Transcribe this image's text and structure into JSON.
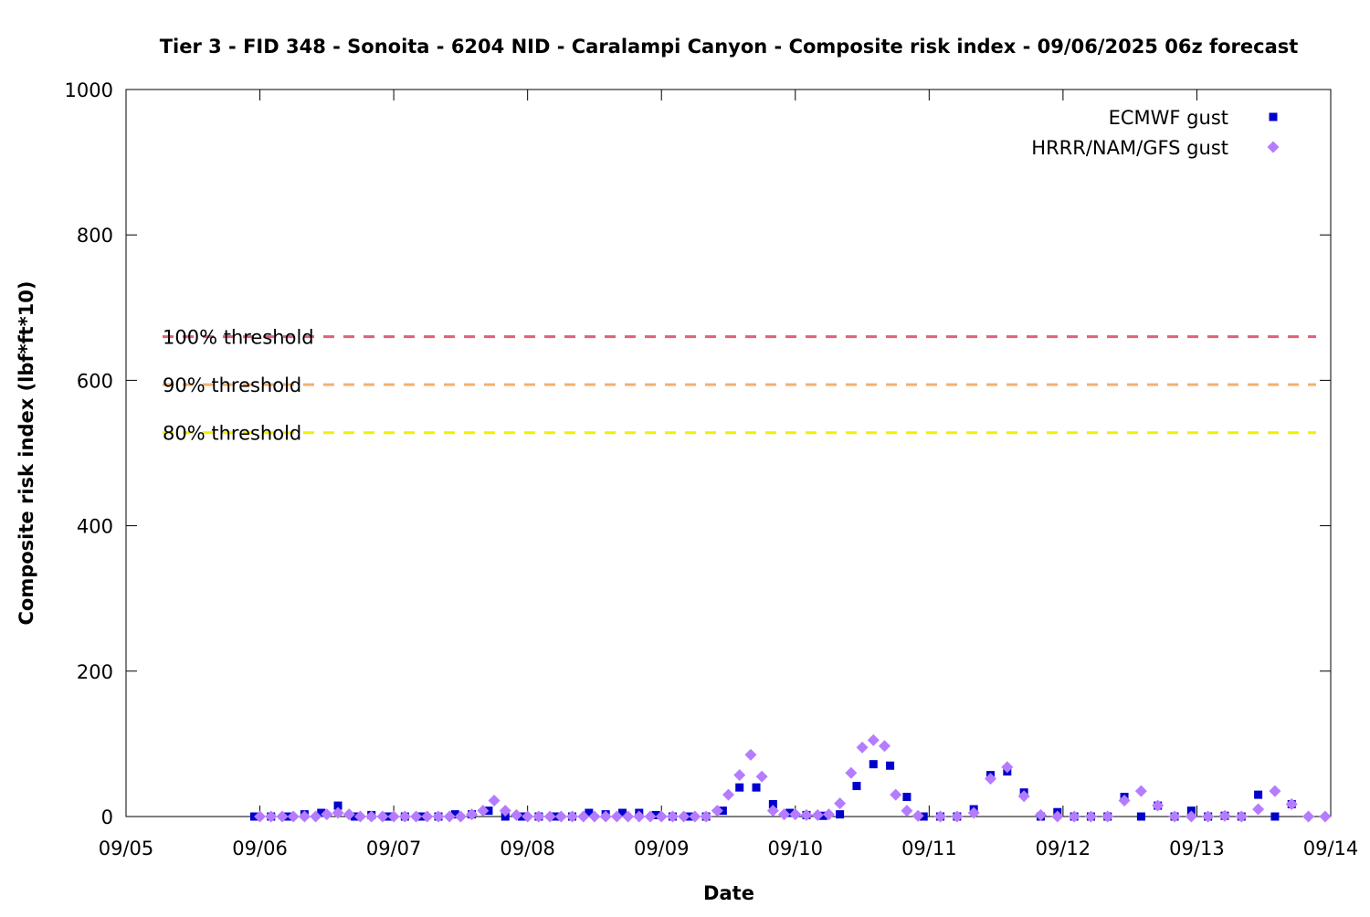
{
  "chart_data": {
    "type": "scatter",
    "title": "Tier 3 - FID 348 - Sonoita - 6204 NID - Caralampi Canyon - Composite risk index - 09/06/2025 06z forecast",
    "xlabel": "Date",
    "ylabel": "Composite risk index (lbf*ft*10)",
    "xlim": [
      0,
      216
    ],
    "xticks": [
      {
        "value": 0,
        "label": "09/05"
      },
      {
        "value": 24,
        "label": "09/06"
      },
      {
        "value": 48,
        "label": "09/07"
      },
      {
        "value": 72,
        "label": "09/08"
      },
      {
        "value": 96,
        "label": "09/09"
      },
      {
        "value": 120,
        "label": "09/10"
      },
      {
        "value": 144,
        "label": "09/11"
      },
      {
        "value": 168,
        "label": "09/12"
      },
      {
        "value": 192,
        "label": "09/13"
      },
      {
        "value": 216,
        "label": "09/14"
      }
    ],
    "ylim": [
      0,
      1000
    ],
    "yticks": [
      0,
      200,
      400,
      600,
      800,
      1000
    ],
    "legend": "top right",
    "thresholds": [
      {
        "name": "100% threshold",
        "value": 660,
        "color": "#e0607a"
      },
      {
        "name": "90% threshold",
        "value": 594,
        "color": "#f5b070"
      },
      {
        "name": "80% threshold",
        "value": 528,
        "color": "#f0f000"
      }
    ],
    "series": [
      {
        "name": "ECMWF gust",
        "color": "#0000cc",
        "marker": "square",
        "x": [
          23,
          26,
          29,
          32,
          35,
          38,
          41,
          44,
          47,
          50,
          53,
          56,
          59,
          62,
          65,
          68,
          71,
          74,
          77,
          80,
          83,
          86,
          89,
          92,
          95,
          98,
          101,
          104,
          107,
          110,
          113,
          116,
          119,
          122,
          125,
          128,
          131,
          134,
          137,
          140,
          143,
          146,
          149,
          152,
          155,
          158,
          161,
          164,
          167,
          170,
          173,
          176,
          179,
          182,
          185,
          188,
          191,
          194,
          197,
          200,
          203,
          206,
          209
        ],
        "values": [
          0,
          0,
          0,
          3,
          5,
          15,
          0,
          2,
          0,
          0,
          0,
          0,
          3,
          3,
          8,
          0,
          0,
          0,
          0,
          0,
          5,
          3,
          5,
          5,
          2,
          0,
          0,
          0,
          8,
          40,
          40,
          17,
          5,
          2,
          1,
          3,
          42,
          72,
          70,
          27,
          0,
          0,
          0,
          10,
          57,
          62,
          33,
          0,
          6,
          0,
          0,
          0,
          27,
          0,
          15,
          0,
          8,
          0,
          1,
          0,
          30,
          0,
          17
        ]
      },
      {
        "name": "HRRR/NAM/GFS gust",
        "color": "#b57cff",
        "marker": "diamond",
        "x": [
          24,
          26,
          28,
          30,
          32,
          34,
          36,
          38,
          40,
          42,
          44,
          46,
          48,
          50,
          52,
          54,
          56,
          58,
          60,
          62,
          64,
          66,
          68,
          70,
          72,
          74,
          76,
          78,
          80,
          82,
          84,
          86,
          88,
          90,
          92,
          94,
          96,
          98,
          100,
          102,
          104,
          106,
          108,
          110,
          112,
          114,
          116,
          118,
          120,
          122,
          124,
          126,
          128,
          130,
          132,
          134,
          136,
          138,
          140,
          142,
          146,
          149,
          152,
          155,
          158,
          161,
          164,
          167,
          170,
          173,
          176,
          179,
          182,
          185,
          188,
          191,
          194,
          197,
          200,
          203,
          206,
          209,
          212,
          215
        ],
        "values": [
          0,
          0,
          0,
          0,
          0,
          0,
          3,
          5,
          3,
          0,
          0,
          0,
          0,
          0,
          0,
          0,
          0,
          0,
          0,
          3,
          8,
          22,
          8,
          2,
          0,
          0,
          0,
          0,
          0,
          0,
          0,
          0,
          0,
          0,
          0,
          0,
          0,
          0,
          0,
          0,
          0,
          8,
          30,
          57,
          85,
          55,
          8,
          3,
          3,
          2,
          2,
          3,
          18,
          60,
          95,
          105,
          97,
          30,
          8,
          1,
          0,
          0,
          5,
          52,
          68,
          28,
          2,
          0,
          0,
          0,
          0,
          22,
          35,
          15,
          0,
          0,
          0,
          1,
          0,
          10,
          35,
          17,
          0,
          0
        ]
      }
    ]
  }
}
